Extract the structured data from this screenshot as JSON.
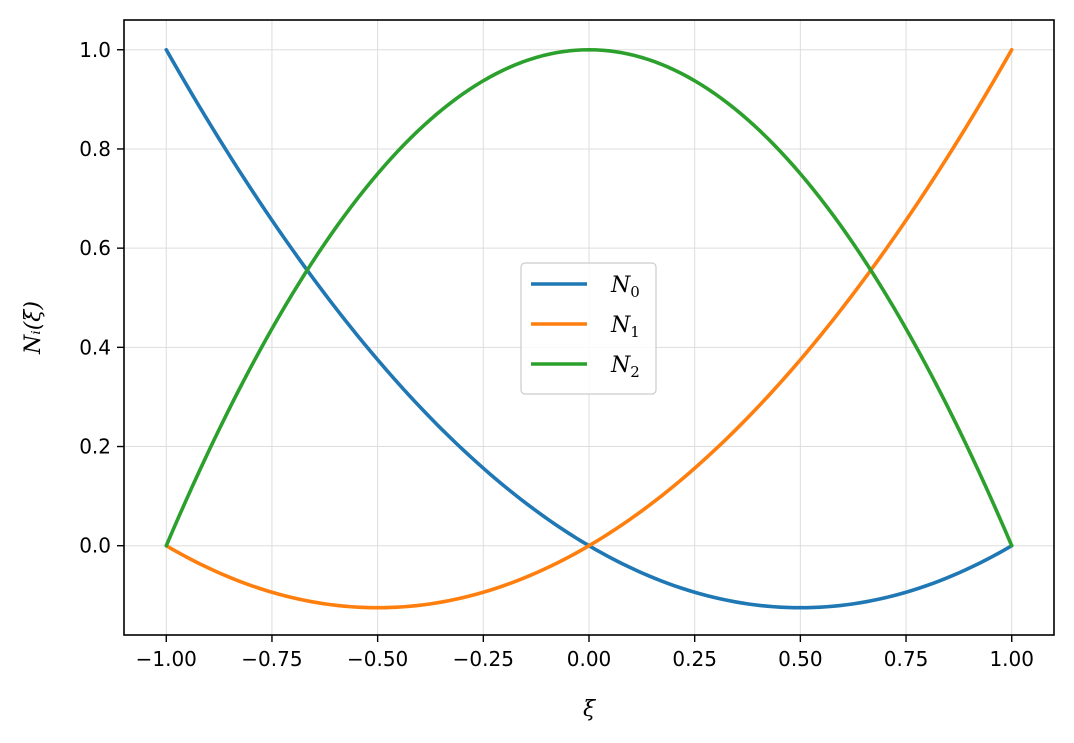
{
  "chart_data": {
    "type": "line",
    "title": "",
    "xlabel": "ξ",
    "ylabel": "Nᵢ(ξ)",
    "xlim": [
      -1.1,
      1.1
    ],
    "ylim": [
      -0.18,
      1.06
    ],
    "xticks": [
      -1.0,
      -0.75,
      -0.5,
      -0.25,
      0.0,
      0.25,
      0.5,
      0.75,
      1.0
    ],
    "xtick_labels": [
      "−1.00",
      "−0.75",
      "−0.50",
      "−0.25",
      "0.00",
      "0.25",
      "0.50",
      "0.75",
      "1.00"
    ],
    "yticks": [
      0.0,
      0.2,
      0.4,
      0.6,
      0.8,
      1.0
    ],
    "ytick_labels": [
      "0.0",
      "0.2",
      "0.4",
      "0.6",
      "0.8",
      "1.0"
    ],
    "grid": true,
    "legend_position": "center",
    "x": [
      -1.0,
      -0.875,
      -0.75,
      -0.625,
      -0.5,
      -0.375,
      -0.25,
      -0.125,
      0.0,
      0.125,
      0.25,
      0.375,
      0.5,
      0.625,
      0.75,
      0.875,
      1.0
    ],
    "series": [
      {
        "name": "N0",
        "color": "#1f77b4",
        "values": [
          1.0,
          0.8203,
          0.6563,
          0.5078,
          0.375,
          0.2578,
          0.1563,
          0.0703,
          0.0,
          -0.0547,
          -0.0938,
          -0.1172,
          -0.125,
          -0.1172,
          -0.0938,
          -0.0547,
          0.0
        ]
      },
      {
        "name": "N1",
        "color": "#ff7f0e",
        "values": [
          0.0,
          -0.0547,
          -0.0938,
          -0.1172,
          -0.125,
          -0.1172,
          -0.0938,
          -0.0547,
          0.0,
          0.0703,
          0.1563,
          0.2578,
          0.375,
          0.5078,
          0.6563,
          0.8203,
          1.0
        ]
      },
      {
        "name": "N2",
        "color": "#2ca02c",
        "values": [
          0.0,
          0.2344,
          0.4375,
          0.6094,
          0.75,
          0.8594,
          0.9375,
          0.9844,
          1.0,
          0.9844,
          0.9375,
          0.8594,
          0.75,
          0.6094,
          0.4375,
          0.2344,
          0.0
        ]
      }
    ]
  }
}
